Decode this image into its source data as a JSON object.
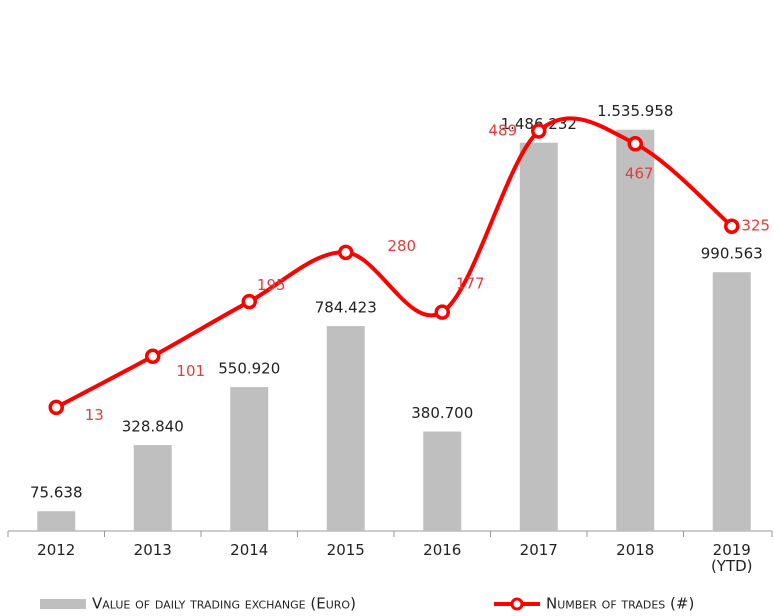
{
  "chart_data": {
    "type": "bar",
    "categories": [
      "2012",
      "2013",
      "2014",
      "2015",
      "2016",
      "2017",
      "2018",
      "2019\n(YTD)"
    ],
    "series": [
      {
        "name": "Value of daily trading exchange (Euro)",
        "type": "bar",
        "color": "#bfbfbf",
        "values": [
          75638,
          328840,
          550920,
          784423,
          380700,
          1486232,
          1535958,
          990563
        ],
        "value_labels": [
          "75.638",
          "328.840",
          "550.920",
          "784.423",
          "380.700",
          "1.486.232",
          "1.535.958",
          "990.563"
        ]
      },
      {
        "name": "Number of trades (#)",
        "type": "line",
        "axis": "y2",
        "color": "#ff0000",
        "values": [
          13,
          101,
          195,
          280,
          177,
          489,
          467,
          325
        ]
      }
    ],
    "ylim": [
      0,
      1600000
    ],
    "y2lim": [
      -200,
      520
    ],
    "smooth": true
  }
}
